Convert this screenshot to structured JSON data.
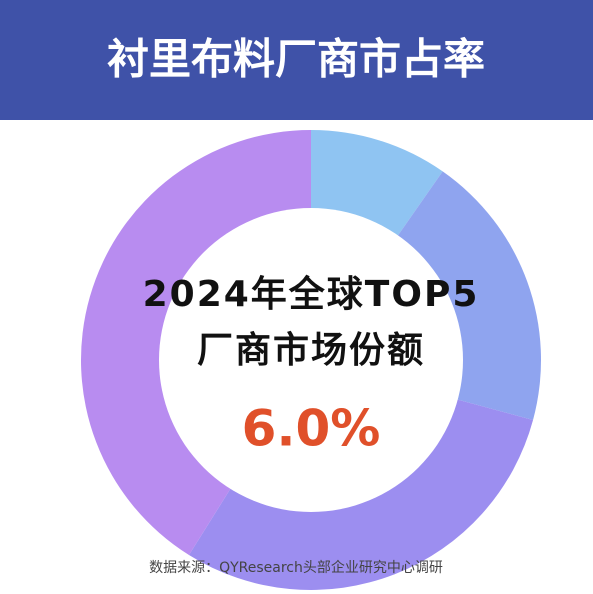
{
  "chart_data": {
    "type": "donut",
    "title": "衬里布料厂商市占率",
    "categories": [
      null,
      null,
      null,
      null
    ],
    "values": [
      9.7,
      19.5,
      29.7,
      41.1
    ],
    "colors": [
      "#8fc4f2",
      "#8fa4ef",
      "#9c8ef0",
      "#b88cf0"
    ],
    "title_band_color": "#3f52a8",
    "annotations": [
      "2024年全球TOP5",
      "厂商市场份额",
      "6.0%"
    ],
    "annotation_highlight_color": "#e0502a",
    "source": "数据来源：QYResearch头部企业研究中心调研"
  }
}
